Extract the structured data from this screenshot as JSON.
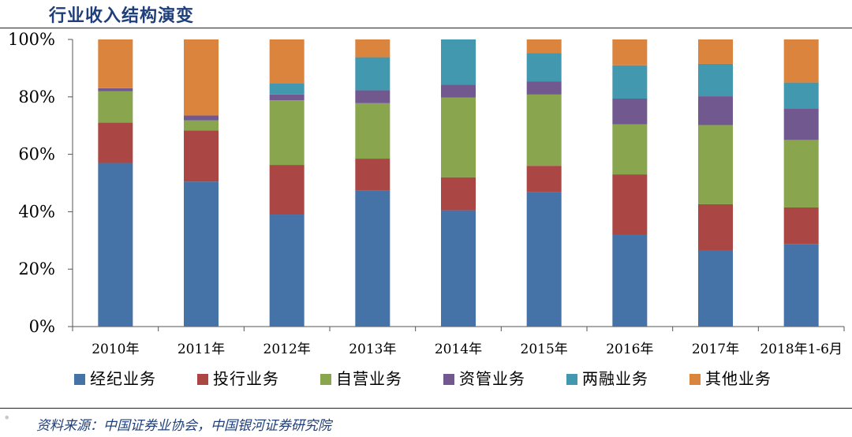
{
  "header": {
    "title": "行业收入结构演变"
  },
  "footer": {
    "source": "资料来源：中国证券业协会，中国银河证券研究院"
  },
  "colors": {
    "经纪业务": "#4572a7",
    "投行业务": "#aa4643",
    "自营业务": "#89a54e",
    "资管业务": "#71588f",
    "两融业务": "#4198af",
    "其他业务": "#db843d"
  },
  "chart_data": {
    "type": "bar",
    "stacked": true,
    "percent": true,
    "categories": [
      "2010年",
      "2011年",
      "2012年",
      "2013年",
      "2014年",
      "2015年",
      "2016年",
      "2017年",
      "2018年1-6月"
    ],
    "y_ticks": [
      "0%",
      "20%",
      "40%",
      "60%",
      "80%",
      "100%"
    ],
    "ylim": [
      0,
      100
    ],
    "legend_position": "bottom",
    "series": [
      {
        "name": "经纪业务",
        "values": [
          57,
          50.5,
          39,
          47.5,
          40.5,
          46.8,
          32,
          26.5,
          28.8
        ]
      },
      {
        "name": "投行业务",
        "values": [
          14,
          17.8,
          17.3,
          11,
          11.5,
          9.2,
          21,
          16.1,
          12.7
        ]
      },
      {
        "name": "自营业务",
        "values": [
          11,
          3.5,
          22.5,
          19.3,
          27.8,
          24.8,
          17.4,
          27.6,
          23.5
        ]
      },
      {
        "name": "资管业务",
        "values": [
          1,
          1.7,
          2,
          4.5,
          4.5,
          4.5,
          9,
          10,
          11
        ]
      },
      {
        "name": "两融业务",
        "values": [
          0,
          0,
          4,
          11.5,
          15.7,
          10,
          11.6,
          11.3,
          9
        ]
      },
      {
        "name": "其他业务",
        "values": [
          17,
          26.5,
          15.2,
          6.2,
          0,
          4.7,
          9,
          8.5,
          15
        ]
      }
    ]
  }
}
